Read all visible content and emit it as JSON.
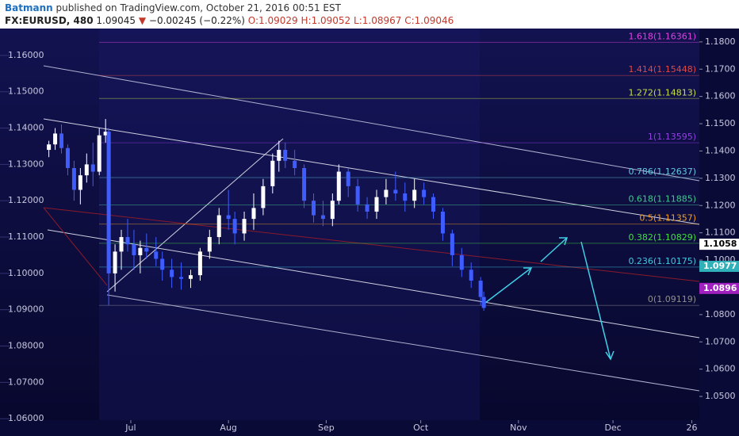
{
  "header": {
    "author": "Batmann",
    "published": "published on TradingView.com, October 21, 2016 00:51 EST",
    "symbol": "FX:EURUSD, 480",
    "last": "1.09045",
    "change": "−0.00245 (−0.22%)",
    "open": "O:1.09029",
    "high": "H:1.09052",
    "low": "L:1.08967",
    "close": "C:1.09046"
  },
  "chart_data": {
    "type": "candlestick",
    "x": [
      4,
      6,
      8,
      10,
      12,
      14,
      16,
      18,
      20,
      22,
      23,
      25,
      27,
      29,
      31,
      33,
      35,
      38,
      40,
      43,
      46,
      49,
      52,
      55,
      58,
      61,
      63,
      66,
      69,
      72,
      75,
      77,
      79,
      82,
      85,
      88,
      91,
      94,
      96,
      99,
      102,
      105,
      108,
      111,
      114,
      117,
      120,
      123,
      126,
      129,
      132,
      135,
      138,
      141,
      142
    ],
    "open": [
      1.134,
      1.1355,
      1.1385,
      1.1345,
      1.129,
      1.123,
      1.127,
      1.13,
      1.128,
      1.138,
      1.139,
      1.1,
      1.106,
      1.11,
      1.108,
      1.105,
      1.107,
      1.106,
      1.104,
      1.101,
      1.099,
      1.0985,
      1.0995,
      1.106,
      1.11,
      1.116,
      1.115,
      1.111,
      1.115,
      1.118,
      1.124,
      1.131,
      1.134,
      1.131,
      1.129,
      1.12,
      1.116,
      1.115,
      1.12,
      1.128,
      1.124,
      1.119,
      1.117,
      1.121,
      1.123,
      1.122,
      1.12,
      1.123,
      1.121,
      1.117,
      1.111,
      1.105,
      1.101,
      1.098,
      1.0935
    ],
    "high": [
      1.1365,
      1.14,
      1.141,
      1.1355,
      1.131,
      1.129,
      1.133,
      1.136,
      1.14,
      1.1425,
      1.14,
      1.108,
      1.112,
      1.115,
      1.112,
      1.109,
      1.111,
      1.11,
      1.106,
      1.104,
      1.103,
      1.101,
      1.107,
      1.112,
      1.118,
      1.123,
      1.117,
      1.117,
      1.122,
      1.126,
      1.133,
      1.1365,
      1.136,
      1.134,
      1.13,
      1.122,
      1.12,
      1.122,
      1.13,
      1.129,
      1.126,
      1.121,
      1.123,
      1.126,
      1.128,
      1.125,
      1.126,
      1.125,
      1.122,
      1.118,
      1.112,
      1.107,
      1.103,
      1.099,
      1.095
    ],
    "low": [
      1.132,
      1.134,
      1.133,
      1.127,
      1.12,
      1.119,
      1.125,
      1.124,
      1.127,
      1.136,
      1.0912,
      1.095,
      1.101,
      1.106,
      1.101,
      1.1,
      1.104,
      1.102,
      1.098,
      1.096,
      1.0955,
      1.096,
      1.098,
      1.104,
      1.108,
      1.112,
      1.108,
      1.109,
      1.112,
      1.116,
      1.122,
      1.128,
      1.129,
      1.127,
      1.118,
      1.114,
      1.113,
      1.113,
      1.119,
      1.121,
      1.117,
      1.115,
      1.115,
      1.119,
      1.12,
      1.117,
      1.118,
      1.119,
      1.115,
      1.109,
      1.102,
      1.099,
      1.096,
      1.0912,
      1.0897
    ],
    "close": [
      1.1355,
      1.1385,
      1.1345,
      1.129,
      1.123,
      1.127,
      1.13,
      1.128,
      1.138,
      1.139,
      1.1,
      1.106,
      1.11,
      1.108,
      1.105,
      1.107,
      1.106,
      1.104,
      1.101,
      1.099,
      1.0985,
      1.0995,
      1.106,
      1.11,
      1.116,
      1.115,
      1.111,
      1.115,
      1.118,
      1.124,
      1.131,
      1.134,
      1.131,
      1.129,
      1.12,
      1.116,
      1.115,
      1.12,
      1.128,
      1.124,
      1.119,
      1.117,
      1.121,
      1.123,
      1.122,
      1.12,
      1.123,
      1.121,
      1.117,
      1.111,
      1.105,
      1.101,
      1.098,
      1.0935,
      1.0905
    ],
    "up_color": "#ffffff",
    "down_color": "#3f5cff",
    "xlim": [
      -11.5,
      210.4
    ],
    "xticks": [
      {
        "value": 30,
        "label": "Jul"
      },
      {
        "value": 61,
        "label": "Aug"
      },
      {
        "value": 92,
        "label": "Sep"
      },
      {
        "value": 122,
        "label": "Oct"
      },
      {
        "value": 153,
        "label": "Nov"
      },
      {
        "value": 183,
        "label": "Dec"
      },
      {
        "value": 208,
        "label": "26"
      }
    ],
    "ylim": [
      1.0596,
      1.1674
    ],
    "yticks": [
      {
        "value": 1.16,
        "label": "1.16000"
      },
      {
        "value": 1.15,
        "label": "1.15000"
      },
      {
        "value": 1.14,
        "label": "1.14000"
      },
      {
        "value": 1.13,
        "label": "1.13000"
      },
      {
        "value": 1.12,
        "label": "1.12000"
      },
      {
        "value": 1.11,
        "label": "1.11000"
      },
      {
        "value": 1.1,
        "label": "1.10000"
      },
      {
        "value": 1.09,
        "label": "1.09000"
      },
      {
        "value": 1.08,
        "label": "1.08000"
      },
      {
        "value": 1.07,
        "label": "1.07000"
      },
      {
        "value": 1.06,
        "label": "1.06000"
      }
    ],
    "y2lim": [
      1.0413,
      1.1849
    ],
    "y2ticks": [
      {
        "value": 1.18,
        "label": "1.1800"
      },
      {
        "value": 1.17,
        "label": "1.1700"
      },
      {
        "value": 1.16,
        "label": "1.1600"
      },
      {
        "value": 1.15,
        "label": "1.1500"
      },
      {
        "value": 1.14,
        "label": "1.1400"
      },
      {
        "value": 1.13,
        "label": "1.1300"
      },
      {
        "value": 1.12,
        "label": "1.1200"
      },
      {
        "value": 1.11,
        "label": "1.1100"
      },
      {
        "value": 1.1,
        "label": "1.1000"
      },
      {
        "value": 1.08,
        "label": "1.0800"
      },
      {
        "value": 1.07,
        "label": "1.0700"
      },
      {
        "value": 1.06,
        "label": "1.0600"
      },
      {
        "value": 1.05,
        "label": "1.0500"
      }
    ],
    "price_labels": [
      {
        "value": 1.1058,
        "color": "#ffffff"
      },
      {
        "value": 1.0977,
        "color": "#30b0b8"
      },
      {
        "value": 1.0896,
        "color": "#a020c0"
      }
    ],
    "fib_levels": [
      {
        "label": "1.618(1.16361)",
        "value": 1.16361,
        "color": "#e040e0"
      },
      {
        "label": "1.414(1.15448)",
        "value": 1.15448,
        "color": "#e04848"
      },
      {
        "label": "1.272(1.14813)",
        "value": 1.14813,
        "color": "#c8e040"
      },
      {
        "label": "1(1.13595)",
        "value": 1.13595,
        "color": "#9040e0"
      },
      {
        "label": "0.786(1.12637)",
        "value": 1.12637,
        "color": "#60c8e0"
      },
      {
        "label": "0.618(1.11885)",
        "value": 1.11885,
        "color": "#40c890"
      },
      {
        "label": "0.5(1.11357)",
        "value": 1.11357,
        "color": "#f0a020"
      },
      {
        "label": "0.382(1.10829)",
        "value": 1.10829,
        "color": "#40e040"
      },
      {
        "label": "0.236(1.10175)",
        "value": 1.10175,
        "color": "#40c8e0"
      },
      {
        "label": "0(1.09119)",
        "value": 1.09119,
        "color": "#909090"
      }
    ]
  }
}
